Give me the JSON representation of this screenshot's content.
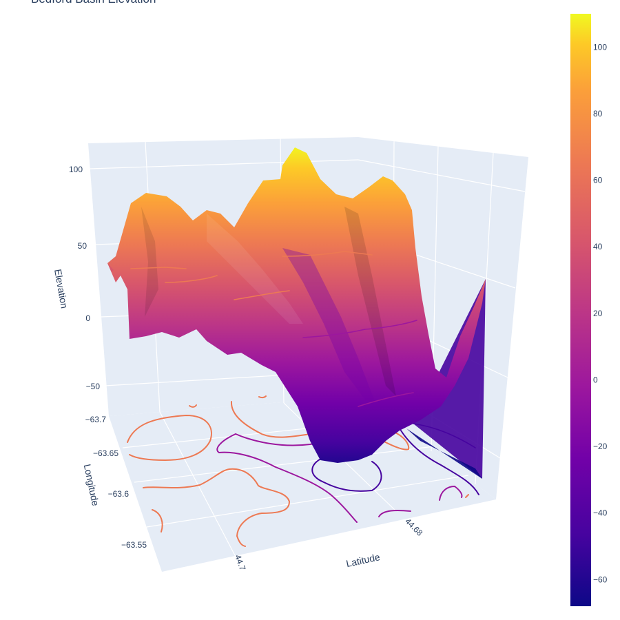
{
  "chart_data": {
    "type": "surface",
    "title": "Bedford Basin Elevation",
    "axes": {
      "x": {
        "label": "Latitude",
        "ticks": [
          "44.7",
          "44.68"
        ],
        "grid": true
      },
      "y": {
        "label": "Longitude",
        "ticks": [
          "-63.7",
          "-63.65",
          "-63.6",
          "-63.55"
        ],
        "grid": true
      },
      "z": {
        "label": "Elevation",
        "ticks": [
          "100",
          "50",
          "0",
          "-50"
        ],
        "range": [
          -70,
          115
        ],
        "grid": true
      }
    },
    "colorbar": {
      "range": [
        -68,
        110
      ],
      "ticks": [
        "100",
        "80",
        "60",
        "40",
        "20",
        "0",
        "-20",
        "-40",
        "-60"
      ],
      "colorscale": "plasma"
    },
    "contours": {
      "projected_on": "floor",
      "show": true
    },
    "colors": {
      "scene_background": "#e5ecf6",
      "grid": "#ffffff",
      "text": "#2a3f5f",
      "scale_low": "#0d0887",
      "scale_mid": "#cc4778",
      "scale_high": "#f0f921"
    }
  }
}
